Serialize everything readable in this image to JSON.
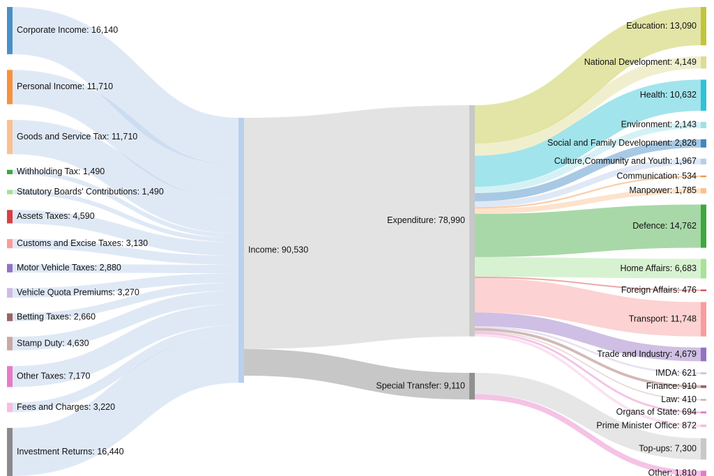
{
  "chart_data": {
    "type": "sankey",
    "title": "",
    "sources": [
      {
        "id": "corporate",
        "label": "Corporate Income: 16,140",
        "value": 16140,
        "color": "#4a8fc6"
      },
      {
        "id": "personal",
        "label": "Personal Income: 11,710",
        "value": 11710,
        "color": "#f7913b"
      },
      {
        "id": "gst",
        "label": "Goods and Service Tax: 11,710",
        "value": 11710,
        "color": "#fbc08f"
      },
      {
        "id": "withholding",
        "label": "Withholding Tax: 1,490",
        "value": 1490,
        "color": "#3da83d"
      },
      {
        "id": "statutory",
        "label": "Statutory Boards' Contributions: 1,490",
        "value": 1490,
        "color": "#9fe38f"
      },
      {
        "id": "assets",
        "label": "Assets Taxes: 4,590",
        "value": 4590,
        "color": "#d93f3f"
      },
      {
        "id": "customs",
        "label": "Customs and Excise Taxes: 3,130",
        "value": 3130,
        "color": "#fb9b9b"
      },
      {
        "id": "motor",
        "label": "Motor Vehicle Taxes: 2,880",
        "value": 2880,
        "color": "#9471c4"
      },
      {
        "id": "quota",
        "label": "Vehicle Quota Premiums: 3,270",
        "value": 3270,
        "color": "#cdbbe3"
      },
      {
        "id": "betting",
        "label": "Betting Taxes: 2,660",
        "value": 2660,
        "color": "#9b6560"
      },
      {
        "id": "stamp",
        "label": "Stamp Duty: 4,630",
        "value": 4630,
        "color": "#c9a9a5"
      },
      {
        "id": "other_taxes",
        "label": "Other Taxes: 7,170",
        "value": 7170,
        "color": "#e77ac8"
      },
      {
        "id": "fees",
        "label": "Fees and Charges: 3,220",
        "value": 3220,
        "color": "#f7bde0"
      },
      {
        "id": "investment",
        "label": "Investment Returns: 16,440",
        "value": 16440,
        "color": "#8a8a8a"
      }
    ],
    "income": {
      "id": "income",
      "label": "Income: 90,530",
      "value": 90530,
      "color": "#b9d0ee"
    },
    "middle": [
      {
        "id": "expenditure",
        "label": "Expenditure: 78,990",
        "value": 78990,
        "color": "#c8c8c8"
      },
      {
        "id": "special",
        "label": "Special Transfer: 9,110",
        "value": 9110,
        "color": "#909090"
      }
    ],
    "targets": [
      {
        "id": "education",
        "label": "Education: 13,090",
        "value": 13090,
        "from": "expenditure",
        "color": "#c2c53a"
      },
      {
        "id": "national_dev",
        "label": "National Development: 4,149",
        "value": 4149,
        "from": "expenditure",
        "color": "#dedc90"
      },
      {
        "id": "health",
        "label": "Health: 10,632",
        "value": 10632,
        "from": "expenditure",
        "color": "#2fc4d4"
      },
      {
        "id": "environment",
        "label": "Environment: 2,143",
        "value": 2143,
        "from": "expenditure",
        "color": "#9fdfe8"
      },
      {
        "id": "social",
        "label": "Social and Family Development: 2,826",
        "value": 2826,
        "from": "expenditure",
        "color": "#3f88c0"
      },
      {
        "id": "culture",
        "label": "Culture,Community and Youth: 1,967",
        "value": 1967,
        "from": "expenditure",
        "color": "#b7cdea"
      },
      {
        "id": "communication",
        "label": "Communication: 534",
        "value": 534,
        "from": "expenditure",
        "color": "#f7913b"
      },
      {
        "id": "manpower",
        "label": "Manpower: 1,785",
        "value": 1785,
        "from": "expenditure",
        "color": "#fbc08f"
      },
      {
        "id": "defence",
        "label": "Defence: 14,762",
        "value": 14762,
        "from": "expenditure",
        "color": "#3da83d"
      },
      {
        "id": "home_affairs",
        "label": "Home Affairs: 6,683",
        "value": 6683,
        "from": "expenditure",
        "color": "#a6e396"
      },
      {
        "id": "foreign_affairs",
        "label": "Foreign Affairs: 476",
        "value": 476,
        "from": "expenditure",
        "color": "#d93f3f"
      },
      {
        "id": "transport",
        "label": "Transport: 11,748",
        "value": 11748,
        "from": "expenditure",
        "color": "#fb9b9b"
      },
      {
        "id": "trade",
        "label": "Trade and Industry: 4,679",
        "value": 4679,
        "from": "expenditure",
        "color": "#9471c4"
      },
      {
        "id": "imda",
        "label": "IMDA: 621",
        "value": 621,
        "from": "expenditure",
        "color": "#cdbbe3"
      },
      {
        "id": "finance",
        "label": "Finance: 910",
        "value": 910,
        "from": "expenditure",
        "color": "#9b6560"
      },
      {
        "id": "law",
        "label": "Law: 410",
        "value": 410,
        "from": "expenditure",
        "color": "#c9a9a5"
      },
      {
        "id": "organs",
        "label": "Organs of State: 694",
        "value": 694,
        "from": "expenditure",
        "color": "#e77ac8"
      },
      {
        "id": "pmo",
        "label": "Prime Minister Office: 872",
        "value": 872,
        "from": "expenditure",
        "color": "#f7bde0"
      },
      {
        "id": "topups",
        "label": "Top-ups: 7,300",
        "value": 7300,
        "from": "special",
        "color": "#c8c8c8"
      },
      {
        "id": "other",
        "label": "Other: 1,810",
        "value": 1810,
        "from": "special",
        "color": "#e77ac8"
      }
    ]
  }
}
